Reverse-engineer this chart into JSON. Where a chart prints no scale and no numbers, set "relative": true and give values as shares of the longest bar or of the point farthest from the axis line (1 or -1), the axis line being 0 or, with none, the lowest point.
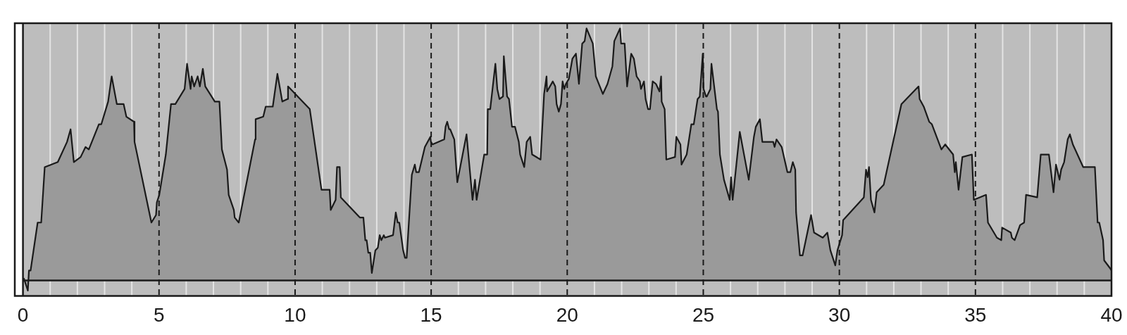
{
  "chart_data": {
    "type": "area",
    "relative": true,
    "grid": "x",
    "xlim": [
      -0.3,
      40
    ],
    "xticks": [
      0,
      {
        "value": 1,
        "label": null
      },
      {
        "value": 2,
        "label": null
      },
      {
        "value": 3,
        "label": null
      },
      {
        "value": 4,
        "label": null
      },
      5,
      {
        "value": 6,
        "label": null
      },
      {
        "value": 7,
        "label": null
      },
      {
        "value": 8,
        "label": null
      },
      {
        "value": 9,
        "label": null
      },
      10,
      {
        "value": 11,
        "label": null
      },
      {
        "value": 12,
        "label": null
      },
      {
        "value": 13,
        "label": null
      },
      {
        "value": 14,
        "label": null
      },
      15,
      {
        "value": 16,
        "label": null
      },
      {
        "value": 17,
        "label": null
      },
      {
        "value": 18,
        "label": null
      },
      {
        "value": 19,
        "label": null
      },
      20,
      {
        "value": 21,
        "label": null
      },
      {
        "value": 22,
        "label": null
      },
      {
        "value": 23,
        "label": null
      },
      {
        "value": 24,
        "label": null
      },
      25,
      {
        "value": 26,
        "label": null
      },
      {
        "value": 27,
        "label": null
      },
      {
        "value": 28,
        "label": null
      },
      {
        "value": 29,
        "label": null
      },
      30,
      {
        "value": 31,
        "label": null
      },
      {
        "value": 32,
        "label": null
      },
      {
        "value": 33,
        "label": null
      },
      {
        "value": 34,
        "label": null
      },
      35,
      {
        "value": 36,
        "label": null
      },
      {
        "value": 37,
        "label": null
      },
      {
        "value": 38,
        "label": null
      },
      {
        "value": 39,
        "label": null
      },
      40
    ],
    "series": [
      {
        "color": "#9a9a9a",
        "x": [
          0.03,
          0.18,
          0.22,
          0.28,
          0.54,
          0.67,
          0.8,
          1.28,
          1.62,
          1.75,
          1.87,
          2.12,
          2.3,
          2.42,
          2.79,
          2.88,
          3.13,
          3.26,
          3.45,
          3.7,
          3.8,
          4.08,
          4.1,
          4.72,
          4.89,
          4.92,
          5.01,
          5.25,
          5.44,
          5.6,
          5.94,
          6.03,
          6.16,
          6.2,
          6.29,
          6.42,
          6.5,
          6.61,
          6.7,
          7.05,
          7.22,
          7.31,
          7.5,
          7.56,
          7.75,
          7.78,
          7.93,
          8.53,
          8.55,
          8.83,
          8.92,
          9.18,
          9.35,
          9.53,
          9.72,
          9.74,
          10.54,
          10.97,
          11.27,
          11.31,
          11.49,
          11.54,
          11.64,
          11.68,
          12.38,
          12.51,
          12.58,
          12.63,
          12.69,
          12.76,
          12.82,
          12.95,
          13.04,
          13.11,
          13.17,
          13.26,
          13.3,
          13.6,
          13.7,
          13.77,
          13.83,
          13.97,
          14.04,
          14.1,
          14.29,
          14.4,
          14.45,
          14.55,
          14.77,
          14.97,
          14.99,
          15.05,
          15.48,
          15.53,
          15.59,
          15.66,
          15.7,
          15.85,
          15.96,
          16.3,
          16.52,
          16.61,
          16.67,
          16.95,
          17.06,
          17.08,
          17.17,
          17.36,
          17.43,
          17.51,
          17.64,
          17.67,
          17.79,
          17.86,
          17.97,
          18.08,
          18.22,
          18.27,
          18.42,
          18.51,
          18.64,
          18.71,
          19.02,
          19.15,
          19.24,
          19.26,
          19.47,
          19.56,
          19.61,
          19.69,
          19.77,
          19.83,
          19.89,
          19.95,
          20.06,
          20.19,
          20.32,
          20.43,
          20.55,
          20.64,
          20.71,
          20.94,
          21.05,
          21.31,
          21.48,
          21.66,
          21.73,
          21.94,
          21.98,
          22.11,
          22.2,
          22.35,
          22.45,
          22.55,
          22.67,
          22.71,
          22.82,
          22.88,
          22.97,
          23.04,
          23.14,
          23.26,
          23.39,
          23.45,
          23.47,
          23.58,
          23.64,
          23.96,
          24.01,
          24.16,
          24.2,
          24.39,
          24.56,
          24.65,
          24.79,
          24.87,
          24.98,
          25.01,
          25.1,
          25.13,
          25.26,
          25.3,
          25.5,
          25.54,
          25.61,
          25.76,
          25.97,
          26.02,
          26.08,
          26.34,
          26.67,
          26.86,
          26.93,
          27.08,
          27.17,
          27.57,
          27.62,
          27.69,
          27.88,
          28.09,
          28.2,
          28.29,
          28.38,
          28.41,
          28.55,
          28.65,
          28.96,
          29.07,
          29.39,
          29.56,
          29.67,
          29.85,
          29.93,
          30.1,
          30.14,
          30.9,
          30.98,
          31.04,
          31.09,
          31.16,
          31.29,
          31.37,
          31.63,
          32.28,
          32.91,
          32.95,
          33.1,
          33.3,
          33.4,
          33.75,
          33.89,
          34.18,
          34.24,
          34.28,
          34.38,
          34.52,
          34.87,
          34.94,
          35.39,
          35.46,
          35.79,
          35.95,
          35.98,
          36.3,
          36.34,
          36.44,
          36.64,
          36.79,
          36.86,
          37.27,
          37.4,
          37.7,
          37.87,
          37.96,
          38.09,
          38.15,
          38.26,
          38.39,
          38.47,
          38.58,
          38.96,
          39.39,
          39.49,
          39.55,
          39.69,
          39.73,
          39.94,
          40
        ],
        "values": [
          0.01,
          -0.04,
          0.04,
          0.04,
          0.23,
          0.23,
          0.45,
          0.47,
          0.55,
          0.6,
          0.47,
          0.49,
          0.53,
          0.52,
          0.62,
          0.62,
          0.71,
          0.81,
          0.7,
          0.7,
          0.65,
          0.63,
          0.55,
          0.23,
          0.26,
          0.31,
          0.34,
          0.5,
          0.7,
          0.7,
          0.76,
          0.86,
          0.76,
          0.81,
          0.77,
          0.81,
          0.77,
          0.84,
          0.77,
          0.71,
          0.71,
          0.52,
          0.44,
          0.34,
          0.28,
          0.25,
          0.23,
          0.56,
          0.64,
          0.65,
          0.69,
          0.69,
          0.82,
          0.71,
          0.72,
          0.77,
          0.68,
          0.36,
          0.36,
          0.28,
          0.32,
          0.45,
          0.45,
          0.33,
          0.25,
          0.25,
          0.16,
          0.16,
          0.11,
          0.11,
          0.03,
          0.12,
          0.13,
          0.18,
          0.16,
          0.18,
          0.17,
          0.18,
          0.27,
          0.23,
          0.23,
          0.12,
          0.09,
          0.09,
          0.42,
          0.46,
          0.43,
          0.43,
          0.53,
          0.57,
          0.55,
          0.54,
          0.56,
          0.61,
          0.63,
          0.6,
          0.6,
          0.56,
          0.39,
          0.58,
          0.32,
          0.4,
          0.32,
          0.5,
          0.5,
          0.68,
          0.68,
          0.86,
          0.76,
          0.72,
          0.73,
          0.89,
          0.73,
          0.72,
          0.61,
          0.61,
          0.55,
          0.5,
          0.45,
          0.55,
          0.57,
          0.5,
          0.48,
          0.74,
          0.81,
          0.75,
          0.79,
          0.77,
          0.7,
          0.67,
          0.7,
          0.79,
          0.76,
          0.78,
          0.8,
          0.88,
          0.9,
          0.78,
          0.94,
          0.95,
          1,
          0.94,
          0.81,
          0.74,
          0.78,
          0.85,
          0.95,
          1,
          0.94,
          0.94,
          0.77,
          0.9,
          0.88,
          0.81,
          0.79,
          0.76,
          0.79,
          0.72,
          0.68,
          0.68,
          0.79,
          0.78,
          0.75,
          0.81,
          0.71,
          0.68,
          0.48,
          0.49,
          0.57,
          0.54,
          0.46,
          0.5,
          0.62,
          0.62,
          0.72,
          0.73,
          0.9,
          0.76,
          0.73,
          0.73,
          0.76,
          0.86,
          0.68,
          0.67,
          0.5,
          0.4,
          0.32,
          0.41,
          0.32,
          0.59,
          0.4,
          0.57,
          0.61,
          0.64,
          0.55,
          0.55,
          0.53,
          0.56,
          0.53,
          0.43,
          0.43,
          0.47,
          0.44,
          0.27,
          0.1,
          0.1,
          0.26,
          0.19,
          0.17,
          0.19,
          0.12,
          0.06,
          0.12,
          0.18,
          0.24,
          0.33,
          0.44,
          0.41,
          0.45,
          0.32,
          0.27,
          0.35,
          0.38,
          0.7,
          0.77,
          0.72,
          0.69,
          0.63,
          0.62,
          0.52,
          0.54,
          0.5,
          0.43,
          0.47,
          0.36,
          0.49,
          0.5,
          0.32,
          0.34,
          0.23,
          0.17,
          0.16,
          0.21,
          0.19,
          0.17,
          0.16,
          0.22,
          0.23,
          0.34,
          0.33,
          0.5,
          0.5,
          0.35,
          0.46,
          0.4,
          0.44,
          0.47,
          0.56,
          0.58,
          0.54,
          0.45,
          0.45,
          0.23,
          0.23,
          0.16,
          0.08,
          0.05,
          0.04
        ]
      }
    ]
  }
}
